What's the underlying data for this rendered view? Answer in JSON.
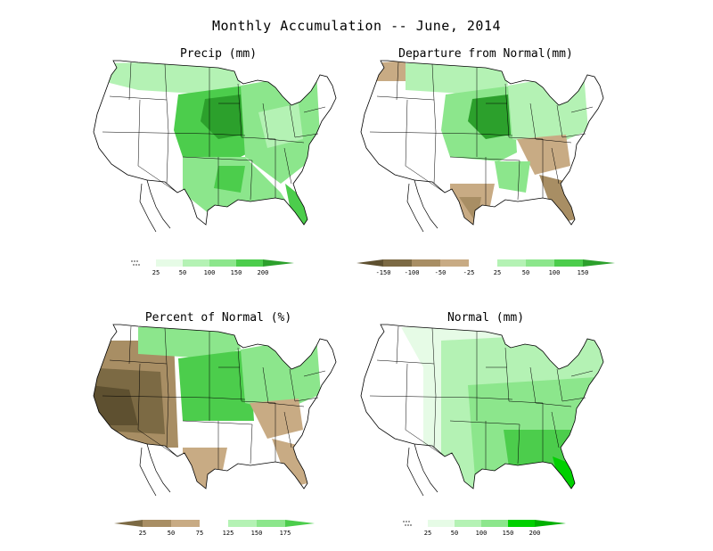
{
  "title": "Monthly Accumulation -- June, 2014",
  "colors": {
    "green_lightest": "#e6fbe6",
    "green_light": "#b4f2b4",
    "green_mid": "#8ce68c",
    "green_dark": "#4ccd4c",
    "green_darkest": "#2ca02c",
    "green_bright": "#00d000",
    "brown_darkest": "#5e5030",
    "brown_dark": "#7c6a44",
    "brown_mid": "#a88e64",
    "brown_light": "#c8ab84",
    "outline": "#000000"
  },
  "panels": [
    {
      "id": "precip",
      "title": "Precip (mm)",
      "legend_ticks": [
        "25",
        "50",
        "100",
        "150",
        "200"
      ]
    },
    {
      "id": "departure",
      "title": "Departure from Normal(mm)",
      "legend_ticks": [
        "-150",
        "-100",
        "-50",
        "-25",
        "25",
        "50",
        "100",
        "150"
      ]
    },
    {
      "id": "percent",
      "title": "Percent of Normal (%)",
      "legend_ticks": [
        "25",
        "50",
        "75",
        "125",
        "150",
        "175"
      ]
    },
    {
      "id": "normal",
      "title": "Normal (mm)",
      "legend_ticks": [
        "25",
        "50",
        "100",
        "150",
        "200"
      ]
    }
  ]
}
